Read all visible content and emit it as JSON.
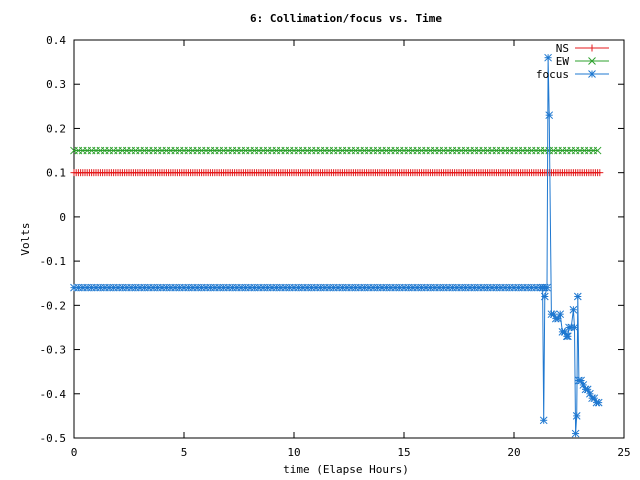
{
  "chart_data": {
    "type": "line",
    "title": "6: Collimation/focus vs. Time",
    "xlabel": "time (Elapse Hours)",
    "ylabel": "Volts",
    "xlim": [
      0,
      25
    ],
    "ylim": [
      -0.5,
      0.4
    ],
    "x_ticks": [
      0,
      5,
      10,
      15,
      20,
      25
    ],
    "y_ticks": [
      -0.5,
      -0.4,
      -0.3,
      -0.2,
      -0.1,
      0,
      0.1,
      0.2,
      0.3,
      0.4
    ],
    "legend_position": "top-right",
    "grid": false,
    "series": [
      {
        "name": "NS",
        "color": "#e41a1c",
        "marker": "plus",
        "constant": {
          "x_start": 0,
          "x_end": 23.9,
          "step": 0.1,
          "y": 0.1
        }
      },
      {
        "name": "EW",
        "color": "#2ca02c",
        "marker": "cross",
        "constant": {
          "x_start": 0,
          "x_end": 23.9,
          "step": 0.2,
          "y": 0.15
        }
      },
      {
        "name": "focus",
        "color": "#1f78d0",
        "marker": "star",
        "constant": {
          "x_start": 0,
          "x_end": 21.3,
          "step": 0.2,
          "y": -0.16
        },
        "points": [
          [
            21.3,
            -0.16
          ],
          [
            21.35,
            -0.46
          ],
          [
            21.4,
            -0.18
          ],
          [
            21.5,
            -0.16
          ],
          [
            21.55,
            0.36
          ],
          [
            21.6,
            0.23
          ],
          [
            21.7,
            -0.22
          ],
          [
            21.8,
            -0.22
          ],
          [
            21.9,
            -0.23
          ],
          [
            22.0,
            -0.23
          ],
          [
            22.1,
            -0.22
          ],
          [
            22.2,
            -0.26
          ],
          [
            22.3,
            -0.26
          ],
          [
            22.4,
            -0.27
          ],
          [
            22.45,
            -0.27
          ],
          [
            22.5,
            -0.25
          ],
          [
            22.6,
            -0.25
          ],
          [
            22.7,
            -0.21
          ],
          [
            22.75,
            -0.25
          ],
          [
            22.8,
            -0.49
          ],
          [
            22.85,
            -0.45
          ],
          [
            22.9,
            -0.18
          ],
          [
            22.95,
            -0.37
          ],
          [
            23.05,
            -0.37
          ],
          [
            23.15,
            -0.38
          ],
          [
            23.25,
            -0.39
          ],
          [
            23.35,
            -0.39
          ],
          [
            23.45,
            -0.4
          ],
          [
            23.55,
            -0.41
          ],
          [
            23.65,
            -0.41
          ],
          [
            23.75,
            -0.42
          ],
          [
            23.85,
            -0.42
          ]
        ]
      }
    ]
  }
}
